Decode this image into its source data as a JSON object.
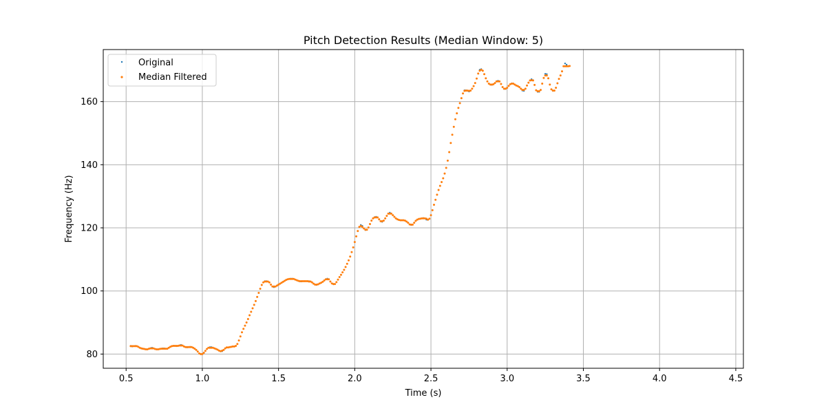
{
  "chart_data": {
    "type": "scatter",
    "title": "Pitch Detection Results (Median Window: 5)",
    "xlabel": "Time (s)",
    "ylabel": "Frequency (Hz)",
    "xlim": [
      0.35,
      4.55
    ],
    "ylim": [
      75.5,
      176.5
    ],
    "xticks": [
      0.5,
      1.0,
      1.5,
      2.0,
      2.5,
      3.0,
      3.5,
      4.0,
      4.5
    ],
    "xtick_labels": [
      "0.5",
      "1.0",
      "1.5",
      "2.0",
      "2.5",
      "3.0",
      "3.5",
      "4.0",
      "4.5"
    ],
    "yticks": [
      80,
      100,
      120,
      140,
      160
    ],
    "ytick_labels": [
      "80",
      "100",
      "120",
      "140",
      "160"
    ],
    "grid": true,
    "legend_position": "top-left",
    "series": [
      {
        "name": "Original",
        "color": "#1f77b4",
        "x_start": 0.53,
        "x_step": 0.01,
        "values": [
          82.6,
          82.4,
          82.5,
          82.6,
          82.5,
          82.3,
          82.0,
          81.8,
          81.7,
          81.6,
          81.5,
          81.5,
          81.7,
          81.9,
          82.0,
          81.8,
          81.6,
          81.5,
          81.5,
          81.6,
          81.7,
          81.8,
          81.8,
          81.7,
          81.7,
          82.0,
          82.3,
          82.5,
          82.6,
          82.6,
          82.5,
          82.6,
          82.8,
          82.9,
          82.7,
          82.4,
          82.2,
          82.1,
          82.2,
          82.3,
          82.2,
          82.0,
          81.7,
          81.3,
          80.8,
          80.2,
          79.9,
          80.0,
          80.4,
          81.0,
          81.6,
          82.0,
          82.2,
          82.2,
          82.0,
          81.8,
          81.6,
          81.4,
          81.1,
          80.9,
          80.9,
          81.3,
          81.8,
          82.1,
          82.1,
          82.2,
          82.3,
          82.4,
          82.4,
          82.6,
          83.2,
          84.3,
          85.6,
          86.9,
          88.0,
          89.0,
          90.0,
          91.1,
          92.3,
          93.4,
          94.5,
          95.6,
          96.8,
          98.1,
          99.4,
          100.7,
          101.9,
          102.7,
          103.1,
          103.1,
          103.0,
          102.7,
          102.0,
          101.4,
          101.2,
          101.4,
          101.7,
          102.0,
          102.3,
          102.6,
          102.9,
          103.2,
          103.5,
          103.7,
          103.8,
          103.9,
          103.9,
          103.8,
          103.6,
          103.4,
          103.2,
          103.0,
          103.0,
          103.1,
          103.1,
          103.1,
          103.1,
          103.1,
          103.0,
          102.7,
          102.3,
          102.0,
          101.9,
          102.1,
          102.4,
          102.6,
          102.9,
          103.3,
          103.7,
          103.9,
          103.7,
          103.0,
          102.4,
          102.1,
          102.2,
          102.8,
          103.6,
          104.4,
          105.1,
          105.9,
          106.7,
          107.6,
          108.6,
          109.7,
          110.9,
          112.3,
          113.8,
          115.5,
          117.3,
          119.0,
          120.3,
          120.9,
          120.6,
          119.8,
          119.3,
          119.4,
          120.1,
          121.2,
          122.3,
          123.0,
          123.4,
          123.5,
          123.3,
          122.7,
          122.1,
          121.9,
          122.3,
          123.0,
          123.8,
          124.5,
          124.8,
          124.5,
          124.0,
          123.5,
          123.0,
          122.7,
          122.5,
          122.4,
          122.4,
          122.4,
          122.3,
          122.0,
          121.6,
          121.1,
          120.9,
          121.0,
          121.6,
          122.2,
          122.6,
          122.8,
          122.9,
          123.0,
          123.1,
          123.0,
          122.6,
          122.5,
          122.9,
          124.0,
          125.6,
          127.3,
          128.9,
          130.5,
          132.0,
          133.3,
          134.5,
          135.7,
          137.2,
          139.0,
          141.3,
          144.0,
          146.9,
          149.5,
          152.0,
          154.4,
          156.3,
          158.0,
          159.5,
          161.1,
          162.6,
          163.6,
          163.6,
          163.4,
          163.2,
          163.5,
          164.1,
          164.9,
          165.9,
          167.3,
          168.9,
          170.1,
          170.3,
          169.8,
          168.7,
          167.4,
          166.4,
          165.7,
          165.4,
          165.3,
          165.5,
          165.9,
          166.4,
          166.6,
          166.4,
          165.6,
          164.6,
          164.0,
          164.0,
          164.4,
          165.0,
          165.5,
          165.8,
          165.7,
          165.4,
          165.1,
          164.9,
          164.6,
          164.1,
          163.5,
          163.4,
          164.1,
          165.1,
          166.0,
          166.7,
          167.1,
          166.8,
          165.3,
          163.6,
          163.1,
          163.1,
          163.7,
          165.7,
          167.5,
          168.8,
          168.7,
          167.4,
          165.4,
          163.9,
          163.4,
          163.5,
          164.4,
          165.8,
          167.2,
          168.3,
          169.6,
          171.2,
          172.1,
          171.7
        ]
      },
      {
        "name": "Median Filtered",
        "color": "#ff7f0e",
        "x_start": 0.53,
        "x_step": 0.01,
        "values": [
          82.5,
          82.5,
          82.5,
          82.5,
          82.5,
          82.3,
          82.0,
          81.8,
          81.7,
          81.6,
          81.5,
          81.5,
          81.7,
          81.8,
          81.8,
          81.8,
          81.6,
          81.5,
          81.5,
          81.6,
          81.7,
          81.7,
          81.7,
          81.7,
          81.7,
          82.0,
          82.3,
          82.5,
          82.6,
          82.6,
          82.6,
          82.6,
          82.7,
          82.7,
          82.7,
          82.4,
          82.2,
          82.2,
          82.2,
          82.2,
          82.2,
          82.0,
          81.7,
          81.3,
          80.8,
          80.2,
          80.0,
          80.0,
          80.4,
          81.0,
          81.6,
          82.0,
          82.0,
          82.0,
          82.0,
          81.8,
          81.6,
          81.4,
          81.1,
          80.9,
          81.1,
          81.3,
          81.8,
          82.1,
          82.1,
          82.2,
          82.3,
          82.4,
          82.4,
          82.6,
          83.2,
          84.3,
          85.6,
          86.9,
          88.0,
          89.0,
          90.0,
          91.1,
          92.3,
          93.4,
          94.5,
          95.6,
          96.8,
          98.1,
          99.4,
          100.7,
          101.9,
          102.7,
          103.0,
          103.0,
          103.0,
          102.7,
          102.0,
          101.4,
          101.4,
          101.4,
          101.7,
          102.0,
          102.3,
          102.6,
          102.9,
          103.2,
          103.5,
          103.7,
          103.8,
          103.8,
          103.8,
          103.8,
          103.6,
          103.4,
          103.2,
          103.1,
          103.1,
          103.1,
          103.1,
          103.1,
          103.1,
          103.0,
          103.0,
          102.7,
          102.3,
          102.0,
          102.0,
          102.1,
          102.4,
          102.6,
          102.9,
          103.3,
          103.7,
          103.7,
          103.7,
          103.0,
          102.4,
          102.2,
          102.2,
          102.8,
          103.6,
          104.4,
          105.1,
          105.9,
          106.7,
          107.6,
          108.6,
          109.7,
          110.9,
          112.3,
          113.8,
          115.5,
          117.3,
          119.0,
          120.3,
          120.6,
          120.3,
          119.8,
          119.4,
          119.4,
          120.1,
          121.2,
          122.3,
          123.0,
          123.3,
          123.3,
          123.3,
          122.7,
          122.1,
          122.1,
          122.3,
          123.0,
          123.8,
          124.5,
          124.5,
          124.5,
          124.0,
          123.5,
          123.0,
          122.7,
          122.5,
          122.4,
          122.4,
          122.4,
          122.3,
          122.0,
          121.6,
          121.1,
          121.0,
          121.0,
          121.6,
          122.2,
          122.6,
          122.8,
          122.9,
          123.0,
          123.0,
          123.0,
          122.9,
          122.6,
          122.9,
          124.0,
          125.6,
          127.3,
          128.9,
          130.5,
          132.0,
          133.3,
          134.5,
          135.7,
          137.2,
          139.0,
          141.3,
          144.0,
          146.9,
          149.5,
          152.0,
          154.4,
          156.3,
          158.0,
          159.5,
          161.1,
          162.6,
          163.4,
          163.5,
          163.5,
          163.4,
          163.5,
          164.1,
          164.9,
          165.9,
          167.3,
          168.9,
          169.8,
          170.1,
          169.8,
          168.7,
          167.4,
          166.4,
          165.7,
          165.4,
          165.4,
          165.5,
          165.9,
          166.4,
          166.4,
          166.4,
          165.6,
          164.6,
          164.1,
          164.1,
          164.4,
          165.0,
          165.5,
          165.7,
          165.7,
          165.4,
          165.1,
          164.9,
          164.6,
          164.1,
          163.7,
          163.7,
          164.1,
          165.1,
          166.0,
          166.7,
          166.8,
          166.7,
          165.3,
          163.6,
          163.3,
          163.3,
          163.7,
          165.7,
          167.5,
          168.3,
          168.3,
          167.4,
          165.4,
          163.9,
          163.5,
          163.5,
          164.4,
          165.8,
          167.2,
          168.3,
          169.6,
          171.2,
          171.2,
          171.2,
          171.2,
          171.3
        ]
      }
    ]
  }
}
